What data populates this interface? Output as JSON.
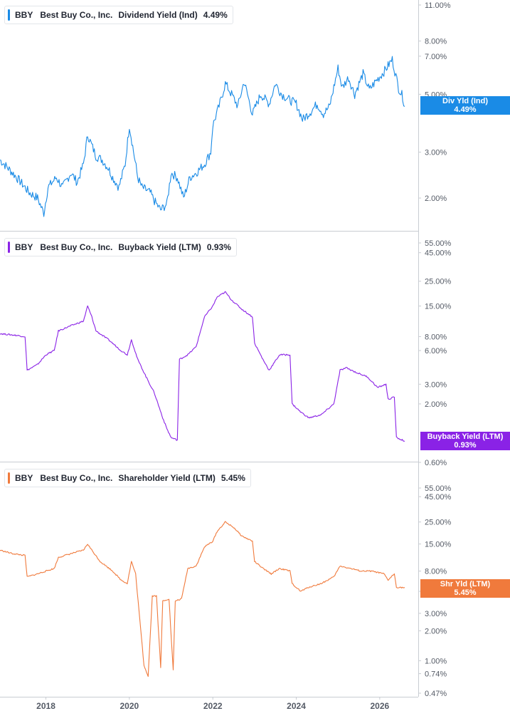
{
  "colors": {
    "dividend": "#1a8be6",
    "buyback": "#8a22e6",
    "shareholder": "#f07a3c",
    "axis": "#c8ccd2",
    "text": "#555b66"
  },
  "panels": [
    {
      "id": "dividend",
      "legend": {
        "ticker": "BBY",
        "company": "Best Buy Co., Inc.",
        "metric": "Dividend Yield (Ind)",
        "value": "4.49%"
      },
      "badge": {
        "line1": "Div Yld (Ind)",
        "line2": "4.49%"
      },
      "axis_ticks": [
        "11.00%",
        "8.00%",
        "7.00%",
        "5.00%",
        "3.00%",
        "2.00%"
      ]
    },
    {
      "id": "buyback",
      "legend": {
        "ticker": "BBY",
        "company": "Best Buy Co., Inc.",
        "metric": "Buyback Yield (LTM)",
        "value": "0.93%"
      },
      "badge": {
        "line1": "Buyback Yield (LTM)",
        "line2": "0.93%"
      },
      "axis_ticks": [
        "55.00%",
        "45.00%",
        "25.00%",
        "15.00%",
        "8.00%",
        "6.00%",
        "3.00%",
        "2.00%",
        "0.60%"
      ]
    },
    {
      "id": "shareholder",
      "legend": {
        "ticker": "BBY",
        "company": "Best Buy Co., Inc.",
        "metric": "Shareholder Yield (LTM)",
        "value": "5.45%"
      },
      "badge": {
        "line1": "Shr Yld (LTM)",
        "line2": "5.45%"
      },
      "axis_ticks": [
        "55.00%",
        "45.00%",
        "25.00%",
        "15.00%",
        "8.00%",
        "5.00%",
        "3.00%",
        "2.00%",
        "1.00%",
        "0.74%",
        "0.47%"
      ]
    }
  ],
  "x_axis_labels": [
    "2018",
    "2020",
    "2022",
    "2024",
    "2026"
  ],
  "chart_data": [
    {
      "type": "line",
      "name": "Dividend Yield (Ind)",
      "ylog": true,
      "ylim": [
        1.5,
        11.5
      ],
      "x": [
        2016.9,
        2017.0,
        2017.2,
        2017.4,
        2017.6,
        2017.8,
        2017.95,
        2018.05,
        2018.25,
        2018.4,
        2018.6,
        2018.75,
        2018.9,
        2019.0,
        2019.2,
        2019.35,
        2019.5,
        2019.6,
        2019.75,
        2019.9,
        2020.0,
        2020.2,
        2020.3,
        2020.5,
        2020.6,
        2020.75,
        2020.9,
        2021.0,
        2021.15,
        2021.3,
        2021.45,
        2021.6,
        2021.8,
        2021.95,
        2022.0,
        2022.15,
        2022.3,
        2022.45,
        2022.6,
        2022.75,
        2022.95,
        2023.15,
        2023.35,
        2023.5,
        2023.65,
        2023.8,
        2024.0,
        2024.15,
        2024.35,
        2024.5,
        2024.65,
        2024.8,
        2025.0,
        2025.1,
        2025.25,
        2025.4,
        2025.6,
        2025.75,
        2025.9,
        2026.1,
        2026.3,
        2026.45,
        2026.55,
        2026.6
      ],
      "y": [
        2.8,
        2.7,
        2.5,
        2.3,
        2.1,
        2.0,
        1.75,
        2.2,
        2.4,
        2.2,
        2.5,
        2.3,
        2.7,
        3.5,
        2.9,
        2.8,
        2.6,
        2.4,
        2.2,
        2.7,
        3.8,
        2.4,
        2.2,
        2.1,
        1.95,
        1.8,
        1.9,
        2.5,
        2.4,
        2.0,
        2.4,
        2.5,
        2.7,
        3.0,
        3.8,
        4.5,
        5.5,
        5.0,
        4.5,
        5.6,
        4.2,
        5.0,
        4.6,
        5.5,
        5.0,
        4.8,
        4.6,
        4.0,
        4.3,
        4.6,
        4.2,
        4.5,
        6.3,
        5.3,
        5.8,
        5.0,
        6.0,
        5.2,
        5.6,
        6.1,
        6.8,
        5.3,
        4.9,
        4.49
      ]
    },
    {
      "type": "line",
      "name": "Buyback Yield (LTM)",
      "ylog": true,
      "ylim": [
        0.6,
        60
      ],
      "x": [
        2016.9,
        2017.3,
        2017.5,
        2017.55,
        2017.8,
        2018.0,
        2018.2,
        2018.3,
        2018.6,
        2018.9,
        2019.0,
        2019.1,
        2019.2,
        2019.5,
        2019.8,
        2019.95,
        2020.05,
        2020.2,
        2020.4,
        2020.6,
        2020.8,
        2020.9,
        2021.0,
        2021.15,
        2021.2,
        2021.4,
        2021.6,
        2021.8,
        2022.0,
        2022.1,
        2022.3,
        2022.45,
        2022.7,
        2022.95,
        2023.0,
        2023.2,
        2023.35,
        2023.6,
        2023.85,
        2023.9,
        2024.1,
        2024.3,
        2024.6,
        2024.9,
        2025.05,
        2025.2,
        2025.45,
        2025.7,
        2025.95,
        2026.15,
        2026.2,
        2026.35,
        2026.4,
        2026.6
      ],
      "y": [
        8.5,
        8.2,
        8.0,
        4.0,
        4.5,
        5.5,
        6.0,
        9.0,
        10.0,
        11.0,
        15.0,
        12.0,
        9.0,
        7.5,
        6.0,
        5.5,
        7.5,
        5.0,
        3.5,
        2.5,
        1.5,
        1.2,
        1.0,
        0.95,
        5.0,
        5.5,
        6.5,
        12.0,
        15.0,
        18.0,
        20.0,
        17.0,
        14.0,
        12.0,
        7.0,
        5.0,
        4.0,
        5.5,
        5.5,
        2.0,
        1.7,
        1.5,
        1.6,
        2.0,
        4.0,
        4.2,
        3.8,
        3.5,
        2.8,
        3.0,
        2.2,
        2.3,
        1.0,
        0.93
      ]
    },
    {
      "type": "line",
      "name": "Shareholder Yield (LTM)",
      "ylog": true,
      "ylim": [
        0.47,
        60
      ],
      "x": [
        2016.9,
        2017.2,
        2017.5,
        2017.55,
        2017.8,
        2018.0,
        2018.2,
        2018.3,
        2018.6,
        2018.9,
        2019.0,
        2019.1,
        2019.3,
        2019.6,
        2019.8,
        2019.95,
        2020.05,
        2020.15,
        2020.35,
        2020.45,
        2020.55,
        2020.65,
        2020.75,
        2020.8,
        2020.95,
        2021.05,
        2021.1,
        2021.25,
        2021.4,
        2021.6,
        2021.8,
        2022.0,
        2022.1,
        2022.3,
        2022.5,
        2022.7,
        2022.95,
        2023.0,
        2023.2,
        2023.4,
        2023.6,
        2023.85,
        2023.9,
        2024.1,
        2024.3,
        2024.6,
        2024.9,
        2025.05,
        2025.3,
        2025.55,
        2025.8,
        2026.1,
        2026.2,
        2026.35,
        2026.4,
        2026.6
      ],
      "y": [
        13.0,
        12.0,
        11.5,
        7.0,
        7.5,
        8.0,
        8.5,
        11.0,
        12.0,
        13.0,
        15.0,
        13.0,
        10.0,
        8.0,
        6.5,
        6.0,
        10.0,
        7.5,
        0.9,
        0.7,
        4.5,
        4.5,
        0.85,
        4.0,
        4.2,
        0.8,
        4.0,
        4.2,
        8.5,
        9.0,
        14.0,
        16.0,
        20.0,
        25.0,
        22.0,
        18.0,
        16.0,
        10.0,
        8.5,
        7.5,
        8.5,
        8.0,
        6.0,
        5.0,
        5.5,
        6.0,
        7.0,
        9.0,
        8.5,
        8.0,
        8.0,
        7.5,
        6.5,
        7.5,
        5.5,
        5.45
      ]
    }
  ]
}
